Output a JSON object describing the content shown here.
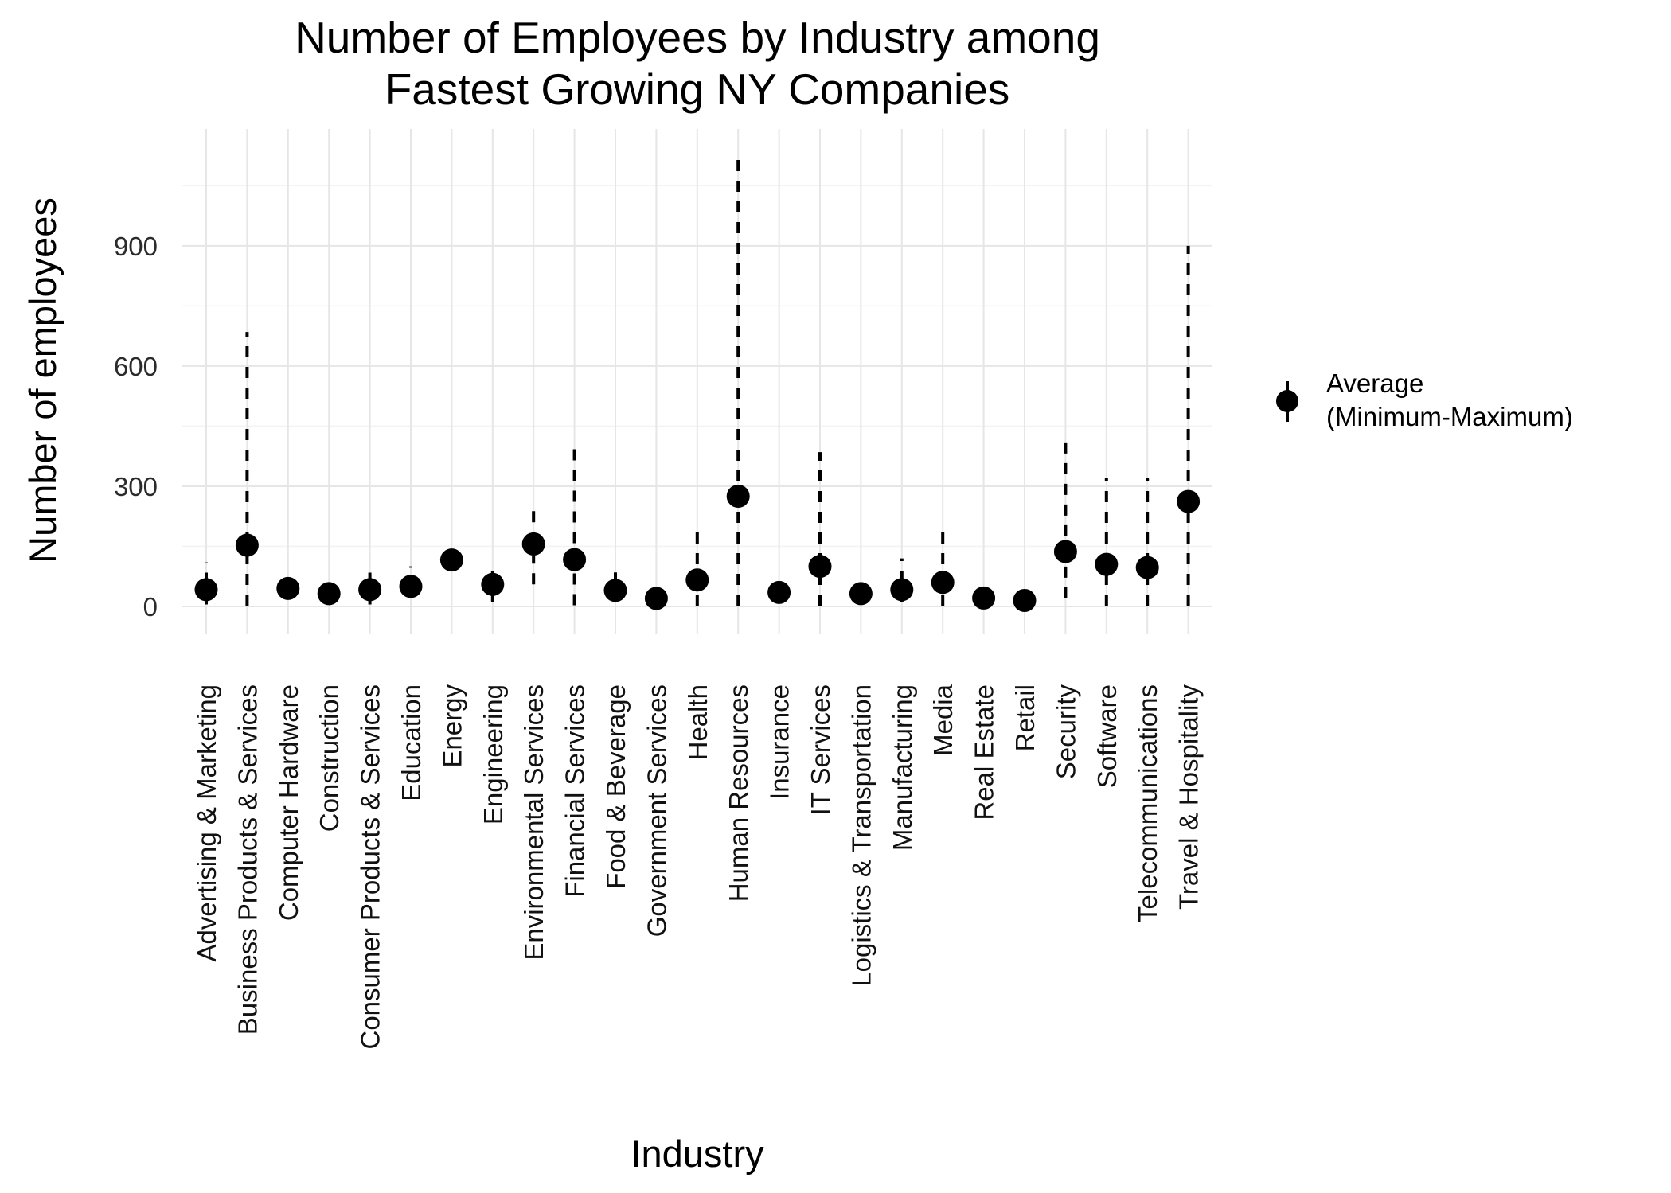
{
  "chart_data": {
    "type": "scatter",
    "title": [
      "Number of Employees by Industry among",
      "Fastest Growing NY Companies"
    ],
    "xlabel": "Industry",
    "ylabel": "Number of employees",
    "ylim": [
      -70,
      1200
    ],
    "yticks": [
      0,
      300,
      600,
      900
    ],
    "grid": true,
    "legend_position": "right",
    "legend": {
      "label_lines": [
        "Average",
        "(Minimum-Maximum)"
      ]
    },
    "categories": [
      "Advertising & Marketing",
      "Business Products & Services",
      "Computer Hardware",
      "Construction",
      "Consumer Products & Services",
      "Education",
      "Energy",
      "Engineering",
      "Environmental Services",
      "Financial Services",
      "Food & Beverage",
      "Government Services",
      "Health",
      "Human Resources",
      "Insurance",
      "IT Services",
      "Logistics & Transportation",
      "Manufacturing",
      "Media",
      "Real Estate",
      "Retail",
      "Security",
      "Software",
      "Telecommunications",
      "Travel & Hospitality"
    ],
    "series": [
      {
        "name": "Average",
        "values": [
          42,
          153,
          45,
          32,
          42,
          50,
          116,
          55,
          156,
          117,
          40,
          20,
          66,
          275,
          35,
          100,
          32,
          42,
          60,
          21,
          15,
          137,
          105,
          97,
          262
        ]
      },
      {
        "name": "Minimum",
        "values": [
          5,
          2,
          40,
          30,
          5,
          45,
          116,
          10,
          55,
          3,
          15,
          15,
          2,
          2,
          35,
          2,
          30,
          10,
          2,
          21,
          15,
          20,
          2,
          2,
          2
        ]
      },
      {
        "name": "Maximum",
        "values": [
          110,
          685,
          50,
          35,
          100,
          100,
          116,
          100,
          240,
          410,
          85,
          25,
          185,
          1115,
          35,
          385,
          35,
          120,
          190,
          21,
          15,
          420,
          320,
          320,
          900
        ]
      }
    ]
  }
}
